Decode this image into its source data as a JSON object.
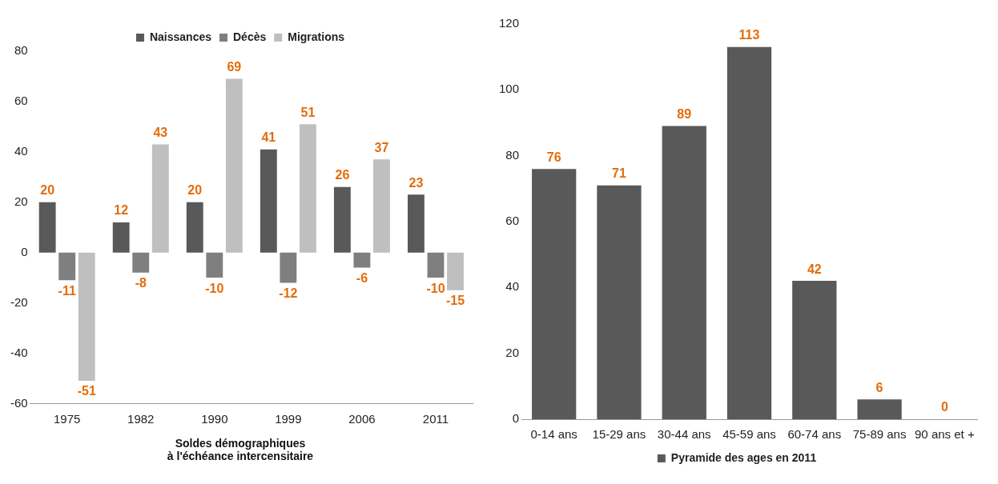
{
  "chart_data": [
    {
      "type": "bar",
      "title": "Soldes démographiques\nà l'échéance intercensitaire",
      "categories": [
        "1975",
        "1982",
        "1990",
        "1999",
        "2006",
        "2011"
      ],
      "series": [
        {
          "name": "Naissances",
          "color": "#595959",
          "values": [
            20,
            12,
            20,
            41,
            26,
            23
          ]
        },
        {
          "name": "Décès",
          "color": "#7f7f7f",
          "values": [
            -11,
            -8,
            -10,
            -12,
            -6,
            -10
          ]
        },
        {
          "name": "Migrations",
          "color": "#bfbfbf",
          "values": [
            -51,
            43,
            69,
            51,
            37,
            -15
          ]
        }
      ],
      "ylim": [
        -60,
        80
      ],
      "yticks": [
        -60,
        -40,
        -20,
        0,
        20,
        40,
        60,
        80
      ],
      "legend": "top",
      "data_labels": true
    },
    {
      "type": "bar",
      "categories": [
        "0-14 ans",
        "15-29 ans",
        "30-44 ans",
        "45-59 ans",
        "60-74 ans",
        "75-89 ans",
        "90 ans et +"
      ],
      "series": [
        {
          "name": "Pyramide des ages en 2011",
          "color": "#595959",
          "colors": [
            "#595959",
            "#595959",
            "#595959",
            "#595959",
            "#595959",
            "#595959",
            "#262626"
          ],
          "values": [
            76,
            71,
            89,
            113,
            42,
            6,
            0
          ]
        }
      ],
      "ylim": [
        0,
        120
      ],
      "yticks": [
        0,
        20,
        40,
        60,
        80,
        100,
        120
      ],
      "legend": "bottom",
      "data_labels": true
    }
  ]
}
